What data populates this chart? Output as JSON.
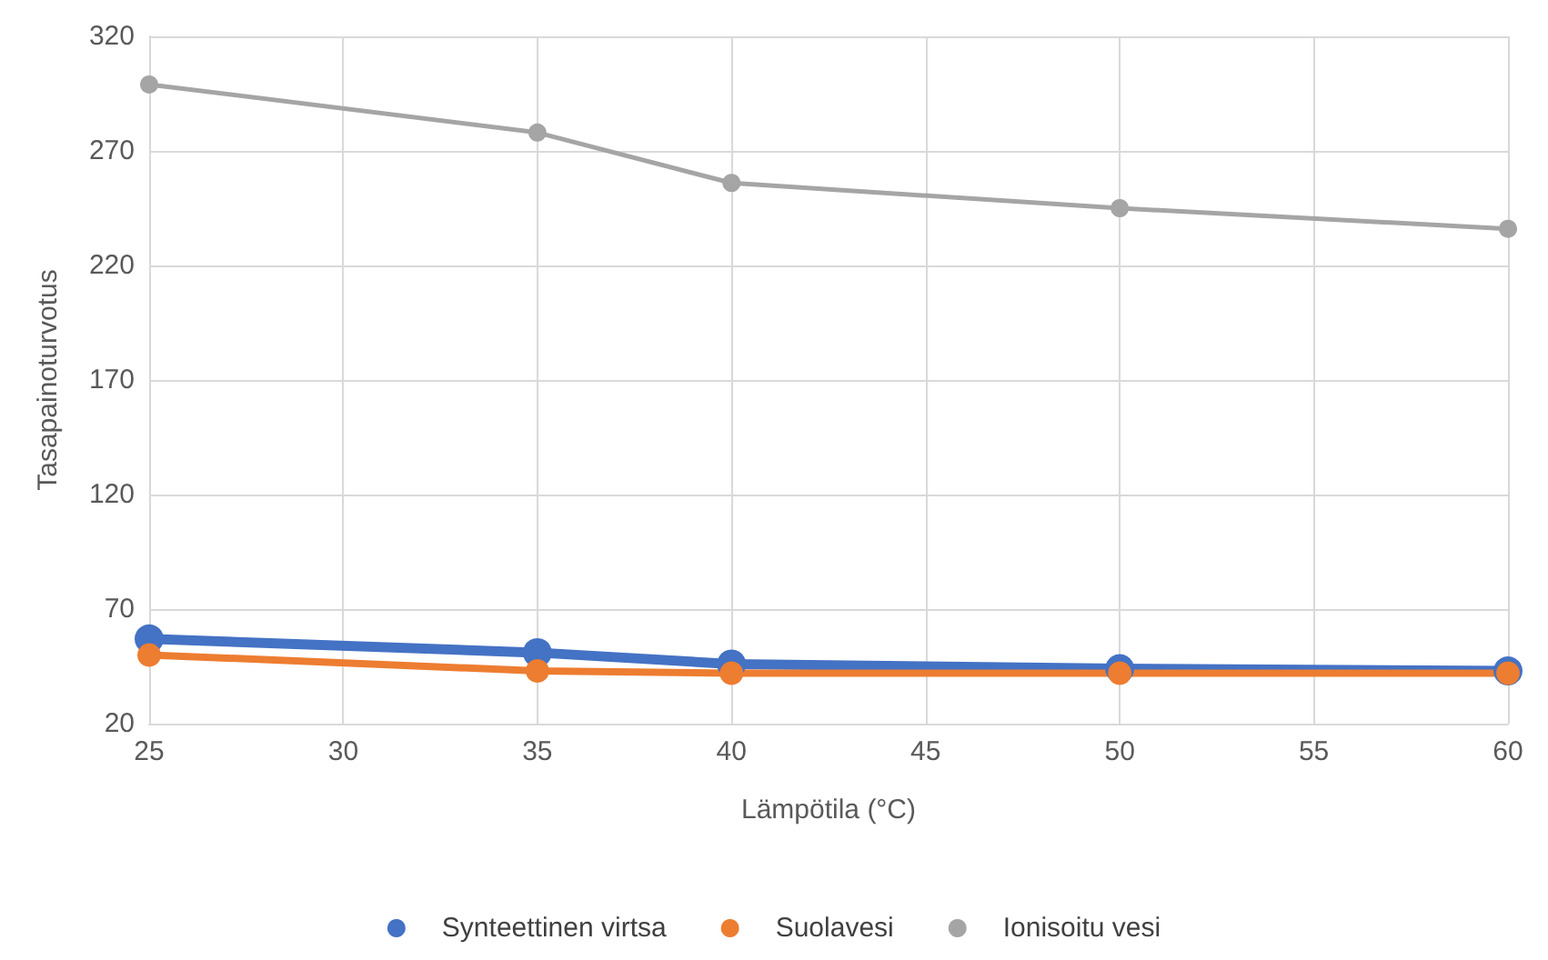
{
  "chart_data": {
    "type": "line",
    "xlabel": "Lämpötila (°C)",
    "ylabel": "Tasapainoturvotus",
    "x": [
      25,
      35,
      40,
      50,
      60
    ],
    "series": [
      {
        "name": "Synteettinen virtsa",
        "color": "#4472c4",
        "values": [
          57,
          51,
          46,
          44,
          43
        ]
      },
      {
        "name": "Suolavesi",
        "color": "#ed7d31",
        "values": [
          50,
          43,
          42,
          42,
          42
        ]
      },
      {
        "name": "Ionisoitu vesi",
        "color": "#a5a5a5",
        "values": [
          299,
          278,
          256,
          245,
          236
        ]
      }
    ],
    "xlim": [
      25,
      60
    ],
    "xticks": [
      25,
      30,
      35,
      40,
      45,
      50,
      55,
      60
    ],
    "ylim": [
      20,
      320
    ],
    "yticks": [
      20,
      70,
      120,
      170,
      220,
      270,
      320
    ],
    "grid": true,
    "legend": "bottom",
    "marker": "circle",
    "line_style": "solid"
  }
}
